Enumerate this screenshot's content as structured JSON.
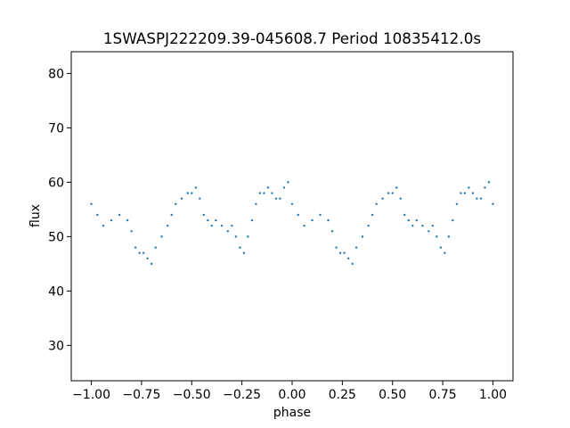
{
  "chart_data": {
    "type": "scatter",
    "title": "1SWASPJ222209.39-045608.7 Period 10835412.0s",
    "xlabel": "phase",
    "ylabel": "flux",
    "xlim": [
      -1.1,
      1.1
    ],
    "ylim": [
      23.5,
      84.0
    ],
    "xticks": [
      -1.0,
      -0.75,
      -0.5,
      -0.25,
      0.0,
      0.25,
      0.5,
      0.75,
      1.0
    ],
    "xtick_labels": [
      "−1.00",
      "−0.75",
      "−0.50",
      "−0.25",
      "0.00",
      "0.25",
      "0.50",
      "0.75",
      "1.00"
    ],
    "yticks": [
      30,
      40,
      50,
      60,
      70,
      80
    ],
    "ytick_labels": [
      "30",
      "40",
      "50",
      "60",
      "70",
      "80"
    ],
    "grid": false,
    "legend": "none",
    "marker_color": "#1f77b4",
    "series": [
      {
        "description_points": "folded light curve trend (phase, flux); pattern repeats with period 1 in phase",
        "x": [
          -1.0,
          -0.97,
          -0.94,
          -0.9,
          -0.86,
          -0.82,
          -0.8,
          -0.78,
          -0.76,
          -0.74,
          -0.72,
          -0.7,
          -0.68,
          -0.65,
          -0.62,
          -0.6,
          -0.58,
          -0.55,
          -0.52,
          -0.5,
          -0.48,
          -0.46,
          -0.44,
          -0.42,
          -0.4,
          -0.38,
          -0.35,
          -0.32,
          -0.3,
          -0.28,
          -0.26,
          -0.24,
          -0.22,
          -0.2,
          -0.18,
          -0.16,
          -0.14,
          -0.12,
          -0.1,
          -0.08,
          -0.06,
          -0.04,
          -0.02,
          0.0
        ],
        "y": [
          56,
          54,
          52,
          53,
          54,
          53,
          51,
          48,
          47,
          47,
          46,
          45,
          48,
          50,
          52,
          54,
          56,
          57,
          58,
          58,
          59,
          57,
          54,
          53,
          52,
          53,
          52,
          51,
          52,
          50,
          48,
          47,
          50,
          53,
          56,
          58,
          58,
          59,
          58,
          57,
          57,
          59,
          60,
          56
        ]
      }
    ]
  }
}
